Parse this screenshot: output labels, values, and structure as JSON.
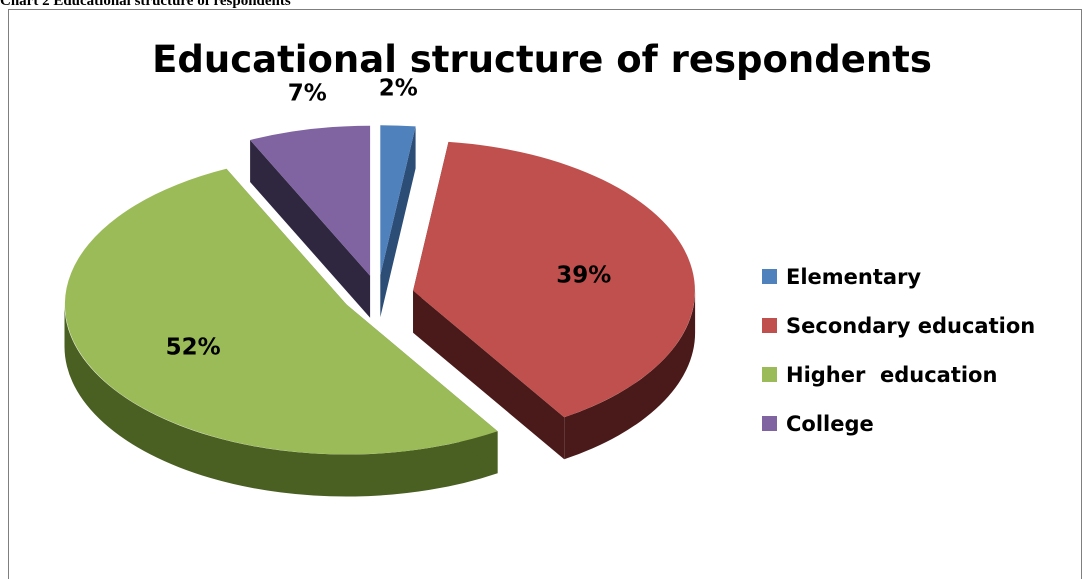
{
  "caption": "Chart 2 Educational  structure of respondents",
  "chart_data": {
    "type": "pie",
    "title": "Educational structure of respondents",
    "legend_position": "right",
    "slices": [
      {
        "label": "Elementary",
        "value": 2,
        "display": "2%",
        "color": "#4f81bd",
        "side_color": "#2c4d75"
      },
      {
        "label": "Secondary education",
        "value": 39,
        "display": "39%",
        "color": "#c0504d",
        "side_color": "#4a1a1a"
      },
      {
        "label": "Higher  education",
        "value": 52,
        "display": "52%",
        "color": "#9bbb59",
        "side_color": "#4a5f22"
      },
      {
        "label": "College",
        "value": 7,
        "display": "7%",
        "color": "#8064a2",
        "side_color": "#2f2640"
      }
    ]
  }
}
